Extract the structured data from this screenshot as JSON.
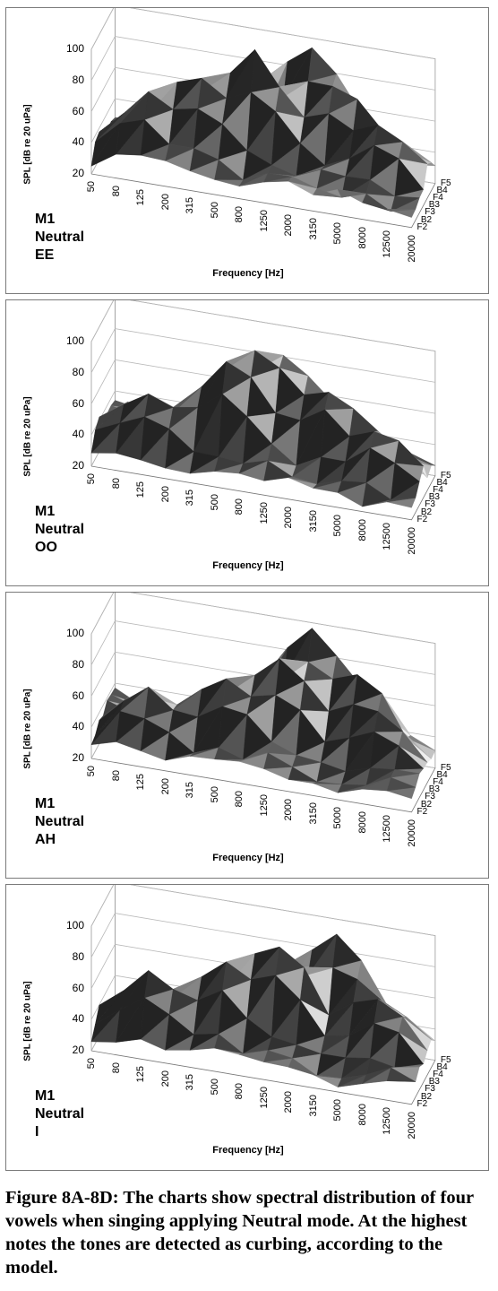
{
  "chart_data": [
    {
      "type": "surface",
      "label_lines": [
        "M1",
        "Neutral",
        "EE"
      ],
      "ylabel": "SPL [dB re 20 uPa]",
      "xlabel": "Frequency [Hz]",
      "ylim": [
        20,
        100
      ],
      "yticks": [
        "20",
        "40",
        "60",
        "80",
        "100"
      ],
      "xticks": [
        "50",
        "80",
        "125",
        "200",
        "315",
        "500",
        "800",
        "1250",
        "2000",
        "3150",
        "5000",
        "8000",
        "12500",
        "20000"
      ],
      "zticks": [
        "F2",
        "B2",
        "F3",
        "B3",
        "F4",
        "B4",
        "F5"
      ],
      "peaks": [
        {
          "freq": "125",
          "note": "F3",
          "spl": 62
        },
        {
          "freq": "315",
          "note": "B3",
          "spl": 78
        },
        {
          "freq": "800",
          "note": "F4",
          "spl": 92
        },
        {
          "freq": "2000",
          "note": "F5",
          "spl": 90
        },
        {
          "freq": "3150",
          "note": "B4",
          "spl": 78
        },
        {
          "freq": "8000",
          "note": "F4",
          "spl": 62
        }
      ]
    },
    {
      "type": "surface",
      "label_lines": [
        "M1",
        "Neutral",
        "OO"
      ],
      "ylabel": "SPL [dB re 20 uPa]",
      "xlabel": "Frequency [Hz]",
      "ylim": [
        20,
        100
      ],
      "yticks": [
        "20",
        "40",
        "60",
        "80",
        "100"
      ],
      "xticks": [
        "50",
        "80",
        "125",
        "200",
        "315",
        "500",
        "800",
        "1250",
        "2000",
        "3150",
        "5000",
        "8000",
        "12500",
        "20000"
      ],
      "zticks": [
        "F2",
        "B2",
        "F3",
        "B3",
        "F4",
        "B4",
        "F5"
      ],
      "peaks": [
        {
          "freq": "125",
          "note": "F3",
          "spl": 62
        },
        {
          "freq": "500",
          "note": "B3",
          "spl": 80
        },
        {
          "freq": "800",
          "note": "F4",
          "spl": 92
        },
        {
          "freq": "1250",
          "note": "B4",
          "spl": 82
        },
        {
          "freq": "3150",
          "note": "F4",
          "spl": 74
        },
        {
          "freq": "8000",
          "note": "B3",
          "spl": 58
        }
      ]
    },
    {
      "type": "surface",
      "label_lines": [
        "M1",
        "Neutral",
        "AH"
      ],
      "ylabel": "SPL [dB re 20 uPa]",
      "xlabel": "Frequency [Hz]",
      "ylim": [
        20,
        100
      ],
      "yticks": [
        "20",
        "40",
        "60",
        "80",
        "100"
      ],
      "xticks": [
        "50",
        "80",
        "125",
        "200",
        "315",
        "500",
        "800",
        "1250",
        "2000",
        "3150",
        "5000",
        "8000",
        "12500",
        "20000"
      ],
      "zticks": [
        "F2",
        "B2",
        "F3",
        "B3",
        "F4",
        "B4",
        "F5"
      ],
      "peaks": [
        {
          "freq": "125",
          "note": "F3",
          "spl": 58
        },
        {
          "freq": "500",
          "note": "B3",
          "spl": 70
        },
        {
          "freq": "1250",
          "note": "F4",
          "spl": 80
        },
        {
          "freq": "2000",
          "note": "F5",
          "spl": 94
        },
        {
          "freq": "5000",
          "note": "B4",
          "spl": 76
        },
        {
          "freq": "8000",
          "note": "F4",
          "spl": 58
        }
      ]
    },
    {
      "type": "surface",
      "label_lines": [
        "M1",
        "Neutral",
        "I"
      ],
      "ylabel": "SPL [dB re 20 uPa]",
      "xlabel": "Frequency [Hz]",
      "ylim": [
        20,
        100
      ],
      "yticks": [
        "20",
        "40",
        "60",
        "80",
        "100"
      ],
      "xticks": [
        "50",
        "80",
        "125",
        "200",
        "315",
        "500",
        "800",
        "1250",
        "2000",
        "3150",
        "5000",
        "8000",
        "12500",
        "20000"
      ],
      "zticks": [
        "F2",
        "B2",
        "F3",
        "B3",
        "F4",
        "B4",
        "F5"
      ],
      "peaks": [
        {
          "freq": "125",
          "note": "F3",
          "spl": 60
        },
        {
          "freq": "500",
          "note": "B3",
          "spl": 72
        },
        {
          "freq": "1250",
          "note": "F4",
          "spl": 86
        },
        {
          "freq": "3150",
          "note": "F5",
          "spl": 92
        },
        {
          "freq": "5000",
          "note": "B4",
          "spl": 70
        },
        {
          "freq": "8000",
          "note": "F4",
          "spl": 64
        }
      ]
    }
  ],
  "caption": "Figure 8A-8D: The charts show spectral distribution of four vowels when singing applying Neutral mode. At the highest notes the tones are detected as curbing, according to the model."
}
